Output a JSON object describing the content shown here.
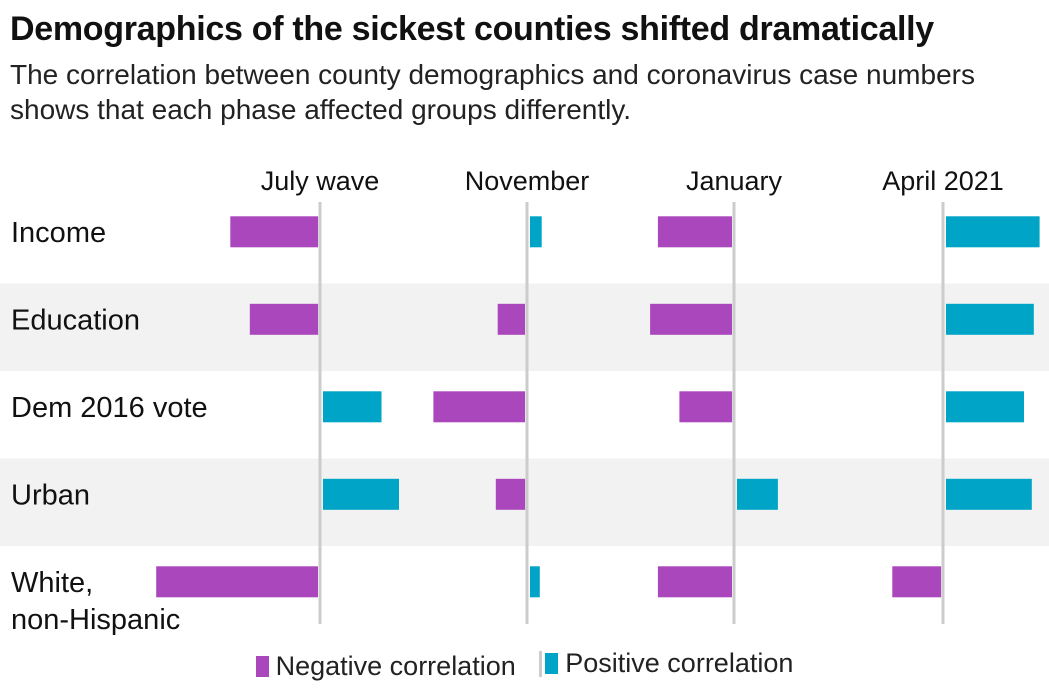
{
  "colors": {
    "negative": "#ab47bc",
    "positive": "#00a4c6",
    "band": "#f2f2f2",
    "axis": "#cccccc"
  },
  "legend": {
    "negative_label": "Negative correlation",
    "positive_label": "Positive correlation"
  },
  "chart_data": {
    "type": "bar",
    "title": "Demographics of the sickest counties shifted dramatically",
    "subtitle": "The correlation between county demographics and coronavirus case numbers shows that each phase affected groups differently.",
    "phases": [
      "July wave",
      "November",
      "January",
      "April 2021"
    ],
    "categories": [
      {
        "lines": [
          "Income"
        ]
      },
      {
        "lines": [
          "Education"
        ]
      },
      {
        "lines": [
          "Dem 2016 vote"
        ]
      },
      {
        "lines": [
          "Urban"
        ]
      },
      {
        "lines": [
          "White,",
          "non-Hispanic"
        ]
      }
    ],
    "series": [
      {
        "values": [
          -0.45,
          -0.35,
          0.3,
          0.39,
          -0.83
        ]
      },
      {
        "values": [
          0.06,
          -0.14,
          -0.47,
          -0.15,
          0.05
        ]
      },
      {
        "values": [
          -0.38,
          -0.42,
          -0.27,
          0.21,
          -0.38
        ]
      },
      {
        "values": [
          0.48,
          0.45,
          0.4,
          0.44,
          -0.25
        ]
      }
    ]
  }
}
